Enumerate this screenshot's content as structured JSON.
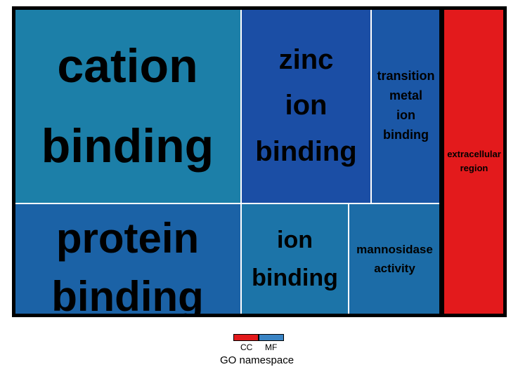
{
  "chart_data": {
    "type": "treemap",
    "groups": [
      {
        "namespace": "MF",
        "color": "#1f78b4",
        "items": [
          {
            "label": "cation binding",
            "lines": [
              "cation",
              "binding"
            ],
            "color": "#1c7fa8"
          },
          {
            "label": "protein binding",
            "lines": [
              "protein",
              "binding"
            ],
            "color": "#1b62a6"
          },
          {
            "label": "zinc ion binding",
            "lines": [
              "zinc",
              "ion",
              "binding"
            ],
            "color": "#1b4ea5"
          },
          {
            "label": "transition metal ion binding",
            "lines": [
              "transition",
              "metal",
              "ion",
              "binding"
            ],
            "color": "#1b57a6"
          },
          {
            "label": "ion binding",
            "lines": [
              "ion",
              "binding"
            ],
            "color": "#1c74a8"
          },
          {
            "label": "mannosidase activity",
            "lines": [
              "mannosidase",
              "activity"
            ],
            "color": "#1c6ca7"
          }
        ]
      },
      {
        "namespace": "CC",
        "color": "#e31a1c",
        "items": [
          {
            "label": "extracellular region",
            "lines": [
              "extracellular",
              "region"
            ],
            "color": "#e31a1c"
          }
        ]
      }
    ],
    "legend": {
      "title": "GO namespace",
      "entries": [
        {
          "name": "CC",
          "color": "#e31a1c"
        },
        {
          "name": "MF",
          "color": "#3a84c4"
        }
      ],
      "placement": "bottom"
    }
  }
}
